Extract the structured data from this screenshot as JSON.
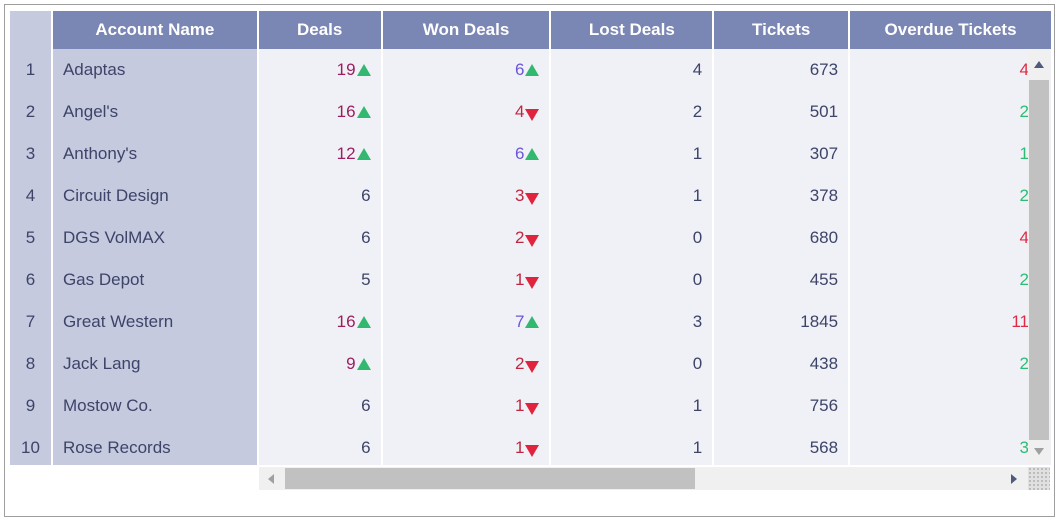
{
  "columns": {
    "account_name": "Account Name",
    "deals": "Deals",
    "won_deals": "Won Deals",
    "lost_deals": "Lost Deals",
    "tickets": "Tickets",
    "overdue_tickets": "Overdue Tickets"
  },
  "rows": [
    {
      "n": "1",
      "name": "Adaptas",
      "deals": "19",
      "won": "6",
      "lost": "4",
      "tickets": "673",
      "overdue": "4"
    },
    {
      "n": "2",
      "name": "Angel's",
      "deals": "16",
      "won": "4",
      "lost": "2",
      "tickets": "501",
      "overdue": "2"
    },
    {
      "n": "3",
      "name": "Anthony's",
      "deals": "12",
      "won": "6",
      "lost": "1",
      "tickets": "307",
      "overdue": "1"
    },
    {
      "n": "4",
      "name": "Circuit Design",
      "deals": "6",
      "won": "3",
      "lost": "1",
      "tickets": "378",
      "overdue": "2"
    },
    {
      "n": "5",
      "name": "DGS VolMAX",
      "deals": "6",
      "won": "2",
      "lost": "0",
      "tickets": "680",
      "overdue": "4"
    },
    {
      "n": "6",
      "name": "Gas Depot",
      "deals": "5",
      "won": "1",
      "lost": "0",
      "tickets": "455",
      "overdue": "2"
    },
    {
      "n": "7",
      "name": "Great Western",
      "deals": "16",
      "won": "7",
      "lost": "3",
      "tickets": "1845",
      "overdue": "11"
    },
    {
      "n": "8",
      "name": "Jack Lang",
      "deals": "9",
      "won": "2",
      "lost": "0",
      "tickets": "438",
      "overdue": "2"
    },
    {
      "n": "9",
      "name": "Mostow Co.",
      "deals": "6",
      "won": "1",
      "lost": "1",
      "tickets": "756",
      "overdue": ""
    },
    {
      "n": "10",
      "name": "Rose Records",
      "deals": "6",
      "won": "1",
      "lost": "1",
      "tickets": "568",
      "overdue": "3"
    }
  ],
  "icons": {
    "trend_up": "triangle-up-icon",
    "trend_down": "triangle-down-icon",
    "scroll_up": "scroll-up-arrow-icon",
    "scroll_down": "scroll-down-arrow-icon",
    "scroll_left": "scroll-left-arrow-icon",
    "scroll_right": "scroll-right-arrow-icon"
  },
  "colors": {
    "header_bg": "#7a86b3",
    "fixed_col_bg": "#c5cadf",
    "cell_bg": "#f0f1f7",
    "up_arrow": "#32b86f",
    "down_arrow": "#e0243d"
  }
}
